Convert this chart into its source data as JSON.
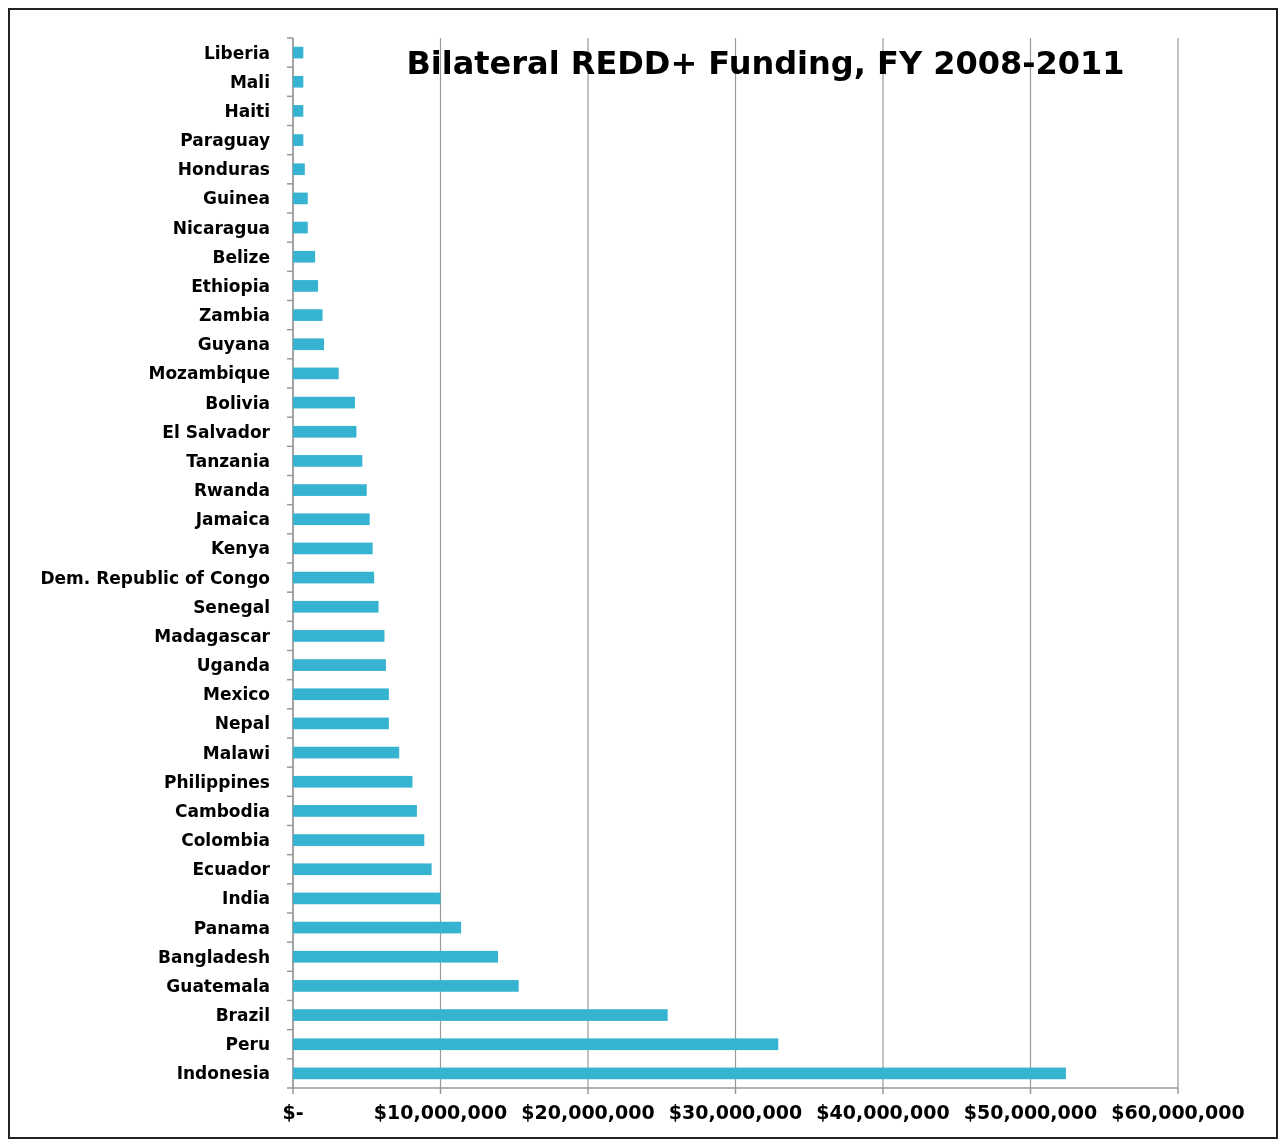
{
  "chart_data": {
    "type": "bar",
    "orientation": "horizontal",
    "title": "Bilateral REDD+ Funding, FY 2008-2011",
    "categories": [
      "Liberia",
      "Mali",
      "Haiti",
      "Paraguay",
      "Honduras",
      "Guinea",
      "Nicaragua",
      "Belize",
      "Ethiopia",
      "Zambia",
      "Guyana",
      "Mozambique",
      "Bolivia",
      "El Salvador",
      "Tanzania",
      "Rwanda",
      "Jamaica",
      "Kenya",
      "Dem. Republic of Congo",
      "Senegal",
      "Madagascar",
      "Uganda",
      "Mexico",
      "Nepal",
      "Malawi",
      "Philippines",
      "Cambodia",
      "Colombia",
      "Ecuador",
      "India",
      "Panama",
      "Bangladesh",
      "Guatemala",
      "Brazil",
      "Peru",
      "Indonesia"
    ],
    "values": [
      700000,
      700000,
      700000,
      700000,
      800000,
      1000000,
      1000000,
      1500000,
      1700000,
      2000000,
      2100000,
      3100000,
      4200000,
      4300000,
      4700000,
      5000000,
      5200000,
      5400000,
      5500000,
      5800000,
      6200000,
      6300000,
      6500000,
      6500000,
      7200000,
      8100000,
      8400000,
      8900000,
      9400000,
      10000000,
      11400000,
      13900000,
      15300000,
      25400000,
      32900000,
      52400000
    ],
    "color": "#36b3d0",
    "xlim": [
      0,
      60000000
    ],
    "xticks": [
      {
        "value": 0,
        "label": "$-"
      },
      {
        "value": 10000000,
        "label": "$10,000,000"
      },
      {
        "value": 20000000,
        "label": "$20,000,000"
      },
      {
        "value": 30000000,
        "label": "$30,000,000"
      },
      {
        "value": 40000000,
        "label": "$40,000,000"
      },
      {
        "value": 50000000,
        "label": "$50,000,000"
      },
      {
        "value": 60000000,
        "label": "$60,000,000"
      }
    ],
    "grid": "x"
  }
}
